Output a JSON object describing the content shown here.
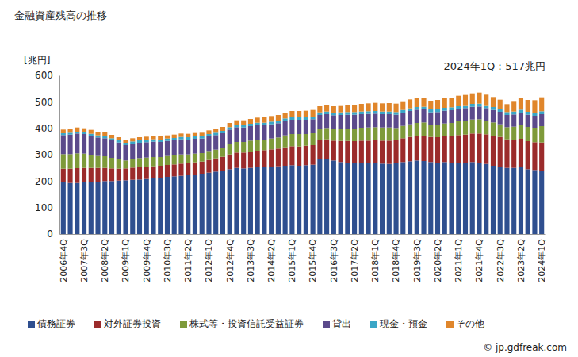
{
  "chart_data": {
    "type": "bar",
    "stacked": true,
    "grid": false,
    "legend": "bottom",
    "title": "金融資産残高の推移",
    "y_label": "[兆円]",
    "annotation": "2024年1Q：517兆円",
    "source": "© jp.gdfreak.com",
    "ylim": [
      0,
      600
    ],
    "yticks": [
      0,
      100,
      200,
      300,
      400,
      500,
      600
    ],
    "categories": [
      "2006年4Q",
      null,
      null,
      "2007年3Q",
      null,
      null,
      "2008年2Q",
      null,
      null,
      "2009年1Q",
      null,
      null,
      "2009年4Q",
      null,
      null,
      "2010年3Q",
      null,
      null,
      "2011年2Q",
      null,
      null,
      "2012年1Q",
      null,
      null,
      "2012年4Q",
      null,
      null,
      "2013年3Q",
      null,
      null,
      "2014年2Q",
      null,
      null,
      "2015年1Q",
      null,
      null,
      "2015年4Q",
      null,
      null,
      "2016年3Q",
      null,
      null,
      "2017年2Q",
      null,
      null,
      "2018年1Q",
      null,
      null,
      "2018年4Q",
      null,
      null,
      "2019年3Q",
      null,
      null,
      "2020年2Q",
      null,
      null,
      "2021年1Q",
      null,
      null,
      "2021年4Q",
      null,
      null,
      "2022年3Q",
      null,
      null,
      "2023年2Q",
      null,
      null,
      "2024年1Q"
    ],
    "series": [
      {
        "name": "債務証券",
        "color": "#2f4f8f",
        "values": [
          195,
          193,
          193,
          195,
          197,
          198,
          200,
          200,
          202,
          203,
          205,
          206,
          208,
          210,
          213,
          216,
          218,
          220,
          222,
          225,
          228,
          232,
          236,
          240,
          245,
          250,
          248,
          250,
          252,
          253,
          255,
          256,
          258,
          260,
          258,
          260,
          262,
          282,
          285,
          278,
          272,
          270,
          268,
          268,
          267,
          268,
          266,
          265,
          268,
          272,
          275,
          278,
          276,
          272,
          270,
          272,
          270,
          270,
          270,
          272,
          270,
          265,
          258,
          255,
          250,
          250,
          252,
          245,
          242,
          240
        ]
      },
      {
        "name": "対外証券投資",
        "color": "#9b2b2b",
        "values": [
          52,
          54,
          56,
          55,
          53,
          52,
          50,
          48,
          45,
          45,
          46,
          47,
          46,
          46,
          45,
          45,
          45,
          46,
          45,
          46,
          46,
          48,
          50,
          52,
          56,
          58,
          60,
          62,
          63,
          64,
          65,
          67,
          70,
          72,
          73,
          74,
          74,
          72,
          73,
          75,
          80,
          82,
          83,
          85,
          86,
          86,
          87,
          88,
          88,
          90,
          92,
          94,
          96,
          95,
          96,
          98,
          100,
          104,
          106,
          108,
          110,
          112,
          114,
          112,
          108,
          106,
          108,
          106,
          105,
          106
        ]
      },
      {
        "name": "株式等・投資信託受益証券",
        "color": "#7e9a3a",
        "values": [
          55,
          55,
          56,
          54,
          50,
          45,
          44,
          40,
          35,
          30,
          32,
          34,
          35,
          35,
          33,
          34,
          34,
          35,
          34,
          33,
          32,
          34,
          33,
          34,
          38,
          40,
          40,
          41,
          42,
          40,
          41,
          42,
          45,
          46,
          47,
          44,
          45,
          44,
          43,
          44,
          46,
          47,
          48,
          49,
          50,
          50,
          50,
          50,
          45,
          47,
          48,
          48,
          50,
          44,
          46,
          48,
          50,
          52,
          52,
          53,
          54,
          52,
          50,
          48,
          46,
          50,
          53,
          54,
          55,
          62
        ]
      },
      {
        "name": "貸出",
        "color": "#5b4a8b",
        "values": [
          72,
          74,
          75,
          74,
          72,
          70,
          68,
          66,
          64,
          58,
          58,
          58,
          58,
          58,
          57,
          57,
          57,
          57,
          56,
          56,
          55,
          55,
          55,
          55,
          56,
          56,
          55,
          55,
          55,
          54,
          54,
          54,
          54,
          54,
          54,
          54,
          53,
          52,
          52,
          52,
          52,
          52,
          52,
          51,
          51,
          51,
          50,
          50,
          50,
          50,
          50,
          50,
          49,
          49,
          49,
          48,
          48,
          48,
          48,
          48,
          48,
          47,
          47,
          47,
          46,
          46,
          46,
          46,
          45,
          45
        ]
      },
      {
        "name": "現金・預金",
        "color": "#3aa6c6",
        "values": [
          7,
          7,
          7,
          7,
          7,
          8,
          8,
          8,
          8,
          9,
          9,
          9,
          9,
          9,
          9,
          9,
          9,
          9,
          9,
          9,
          9,
          9,
          9,
          9,
          9,
          9,
          9,
          9,
          9,
          10,
          10,
          10,
          10,
          10,
          10,
          10,
          10,
          10,
          10,
          10,
          10,
          10,
          10,
          10,
          10,
          10,
          10,
          10,
          10,
          10,
          10,
          10,
          10,
          11,
          11,
          11,
          11,
          11,
          11,
          11,
          11,
          11,
          11,
          11,
          11,
          11,
          11,
          11,
          11,
          11
        ]
      },
      {
        "name": "その他",
        "color": "#e0862b",
        "values": [
          14,
          15,
          16,
          15,
          15,
          14,
          14,
          13,
          12,
          12,
          12,
          12,
          12,
          12,
          12,
          12,
          13,
          13,
          13,
          13,
          13,
          14,
          14,
          15,
          16,
          17,
          18,
          18,
          19,
          20,
          21,
          21,
          22,
          23,
          23,
          24,
          25,
          26,
          26,
          27,
          27,
          28,
          28,
          29,
          30,
          31,
          31,
          32,
          32,
          33,
          34,
          35,
          35,
          33,
          35,
          36,
          37,
          38,
          39,
          40,
          42,
          40,
          38,
          35,
          30,
          40,
          45,
          45,
          48,
          53
        ]
      }
    ]
  }
}
